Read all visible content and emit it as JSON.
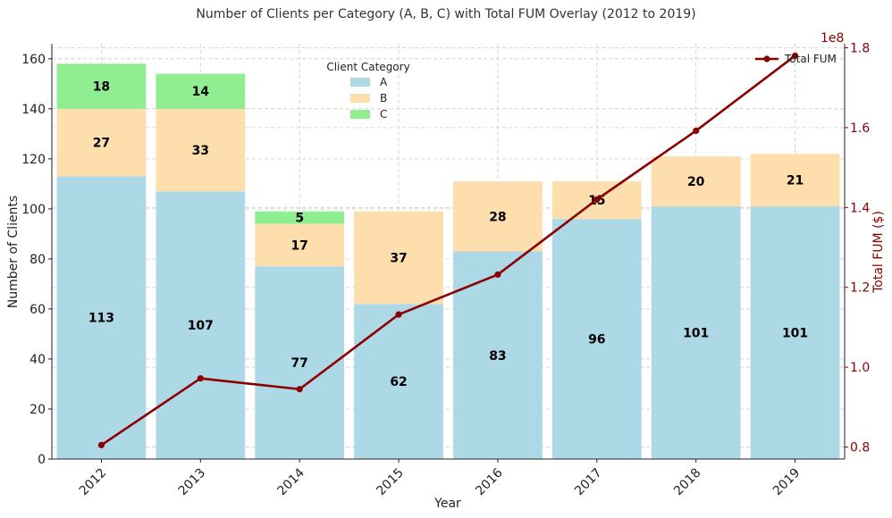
{
  "chart_data": {
    "type": "bar",
    "stacked": true,
    "title": "Number of Clients per Category (A, B, C) with Total FUM Overlay (2012 to 2019)",
    "xlabel": "Year",
    "ylabel": "Number of Clients",
    "y2label": "Total FUM ($)",
    "y2_multiplier_label": "1e8",
    "categories": [
      "2012",
      "2013",
      "2014",
      "2015",
      "2016",
      "2017",
      "2018",
      "2019"
    ],
    "ylim": [
      0,
      166
    ],
    "yticks": [
      0,
      20,
      40,
      60,
      80,
      100,
      120,
      140,
      160
    ],
    "y2lim": [
      0.77,
      1.81
    ],
    "y2ticks": [
      "0.8",
      "1.0",
      "1.2",
      "1.4",
      "1.6",
      "1.8"
    ],
    "legend_title": "Client Category",
    "legend_position": "top-center",
    "line_legend_position": "top-right",
    "grid": true,
    "series": [
      {
        "name": "A",
        "color": "#add8e6",
        "values": [
          113,
          107,
          77,
          62,
          83,
          96,
          101,
          101
        ]
      },
      {
        "name": "B",
        "color": "#ffdead",
        "values": [
          27,
          33,
          17,
          37,
          28,
          15,
          20,
          21
        ]
      },
      {
        "name": "C",
        "color": "#90ee90",
        "values": [
          18,
          14,
          5,
          0,
          0,
          0,
          0,
          0
        ]
      }
    ],
    "line_series": {
      "name": "Total FUM",
      "color": "#8b0000",
      "axis": "right",
      "values": [
        0.805,
        0.972,
        0.945,
        1.132,
        1.232,
        1.42,
        1.592,
        1.78
      ]
    }
  }
}
